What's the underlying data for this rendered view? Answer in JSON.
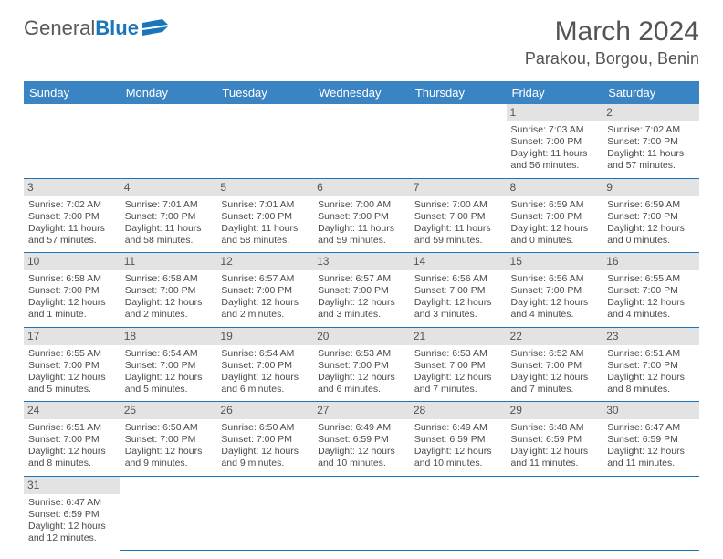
{
  "header": {
    "logo_general": "General",
    "logo_blue": "Blue",
    "month_title": "March 2024",
    "location": "Parakou, Borgou, Benin"
  },
  "colors": {
    "header_bg": "#3b84c4",
    "header_text": "#ffffff",
    "daynum_bg": "#e3e3e3",
    "row_border": "#1b75bb",
    "text": "#4a4a4a",
    "logo_blue": "#1b75bb",
    "logo_gray": "#58595b"
  },
  "weekdays": [
    "Sunday",
    "Monday",
    "Tuesday",
    "Wednesday",
    "Thursday",
    "Friday",
    "Saturday"
  ],
  "weeks": [
    [
      null,
      null,
      null,
      null,
      null,
      {
        "n": "1",
        "rise": "Sunrise: 7:03 AM",
        "set": "Sunset: 7:00 PM",
        "dl": "Daylight: 11 hours and 56 minutes."
      },
      {
        "n": "2",
        "rise": "Sunrise: 7:02 AM",
        "set": "Sunset: 7:00 PM",
        "dl": "Daylight: 11 hours and 57 minutes."
      }
    ],
    [
      {
        "n": "3",
        "rise": "Sunrise: 7:02 AM",
        "set": "Sunset: 7:00 PM",
        "dl": "Daylight: 11 hours and 57 minutes."
      },
      {
        "n": "4",
        "rise": "Sunrise: 7:01 AM",
        "set": "Sunset: 7:00 PM",
        "dl": "Daylight: 11 hours and 58 minutes."
      },
      {
        "n": "5",
        "rise": "Sunrise: 7:01 AM",
        "set": "Sunset: 7:00 PM",
        "dl": "Daylight: 11 hours and 58 minutes."
      },
      {
        "n": "6",
        "rise": "Sunrise: 7:00 AM",
        "set": "Sunset: 7:00 PM",
        "dl": "Daylight: 11 hours and 59 minutes."
      },
      {
        "n": "7",
        "rise": "Sunrise: 7:00 AM",
        "set": "Sunset: 7:00 PM",
        "dl": "Daylight: 11 hours and 59 minutes."
      },
      {
        "n": "8",
        "rise": "Sunrise: 6:59 AM",
        "set": "Sunset: 7:00 PM",
        "dl": "Daylight: 12 hours and 0 minutes."
      },
      {
        "n": "9",
        "rise": "Sunrise: 6:59 AM",
        "set": "Sunset: 7:00 PM",
        "dl": "Daylight: 12 hours and 0 minutes."
      }
    ],
    [
      {
        "n": "10",
        "rise": "Sunrise: 6:58 AM",
        "set": "Sunset: 7:00 PM",
        "dl": "Daylight: 12 hours and 1 minute."
      },
      {
        "n": "11",
        "rise": "Sunrise: 6:58 AM",
        "set": "Sunset: 7:00 PM",
        "dl": "Daylight: 12 hours and 2 minutes."
      },
      {
        "n": "12",
        "rise": "Sunrise: 6:57 AM",
        "set": "Sunset: 7:00 PM",
        "dl": "Daylight: 12 hours and 2 minutes."
      },
      {
        "n": "13",
        "rise": "Sunrise: 6:57 AM",
        "set": "Sunset: 7:00 PM",
        "dl": "Daylight: 12 hours and 3 minutes."
      },
      {
        "n": "14",
        "rise": "Sunrise: 6:56 AM",
        "set": "Sunset: 7:00 PM",
        "dl": "Daylight: 12 hours and 3 minutes."
      },
      {
        "n": "15",
        "rise": "Sunrise: 6:56 AM",
        "set": "Sunset: 7:00 PM",
        "dl": "Daylight: 12 hours and 4 minutes."
      },
      {
        "n": "16",
        "rise": "Sunrise: 6:55 AM",
        "set": "Sunset: 7:00 PM",
        "dl": "Daylight: 12 hours and 4 minutes."
      }
    ],
    [
      {
        "n": "17",
        "rise": "Sunrise: 6:55 AM",
        "set": "Sunset: 7:00 PM",
        "dl": "Daylight: 12 hours and 5 minutes."
      },
      {
        "n": "18",
        "rise": "Sunrise: 6:54 AM",
        "set": "Sunset: 7:00 PM",
        "dl": "Daylight: 12 hours and 5 minutes."
      },
      {
        "n": "19",
        "rise": "Sunrise: 6:54 AM",
        "set": "Sunset: 7:00 PM",
        "dl": "Daylight: 12 hours and 6 minutes."
      },
      {
        "n": "20",
        "rise": "Sunrise: 6:53 AM",
        "set": "Sunset: 7:00 PM",
        "dl": "Daylight: 12 hours and 6 minutes."
      },
      {
        "n": "21",
        "rise": "Sunrise: 6:53 AM",
        "set": "Sunset: 7:00 PM",
        "dl": "Daylight: 12 hours and 7 minutes."
      },
      {
        "n": "22",
        "rise": "Sunrise: 6:52 AM",
        "set": "Sunset: 7:00 PM",
        "dl": "Daylight: 12 hours and 7 minutes."
      },
      {
        "n": "23",
        "rise": "Sunrise: 6:51 AM",
        "set": "Sunset: 7:00 PM",
        "dl": "Daylight: 12 hours and 8 minutes."
      }
    ],
    [
      {
        "n": "24",
        "rise": "Sunrise: 6:51 AM",
        "set": "Sunset: 7:00 PM",
        "dl": "Daylight: 12 hours and 8 minutes."
      },
      {
        "n": "25",
        "rise": "Sunrise: 6:50 AM",
        "set": "Sunset: 7:00 PM",
        "dl": "Daylight: 12 hours and 9 minutes."
      },
      {
        "n": "26",
        "rise": "Sunrise: 6:50 AM",
        "set": "Sunset: 7:00 PM",
        "dl": "Daylight: 12 hours and 9 minutes."
      },
      {
        "n": "27",
        "rise": "Sunrise: 6:49 AM",
        "set": "Sunset: 6:59 PM",
        "dl": "Daylight: 12 hours and 10 minutes."
      },
      {
        "n": "28",
        "rise": "Sunrise: 6:49 AM",
        "set": "Sunset: 6:59 PM",
        "dl": "Daylight: 12 hours and 10 minutes."
      },
      {
        "n": "29",
        "rise": "Sunrise: 6:48 AM",
        "set": "Sunset: 6:59 PM",
        "dl": "Daylight: 12 hours and 11 minutes."
      },
      {
        "n": "30",
        "rise": "Sunrise: 6:47 AM",
        "set": "Sunset: 6:59 PM",
        "dl": "Daylight: 12 hours and 11 minutes."
      }
    ],
    [
      {
        "n": "31",
        "rise": "Sunrise: 6:47 AM",
        "set": "Sunset: 6:59 PM",
        "dl": "Daylight: 12 hours and 12 minutes."
      },
      null,
      null,
      null,
      null,
      null,
      null
    ]
  ]
}
